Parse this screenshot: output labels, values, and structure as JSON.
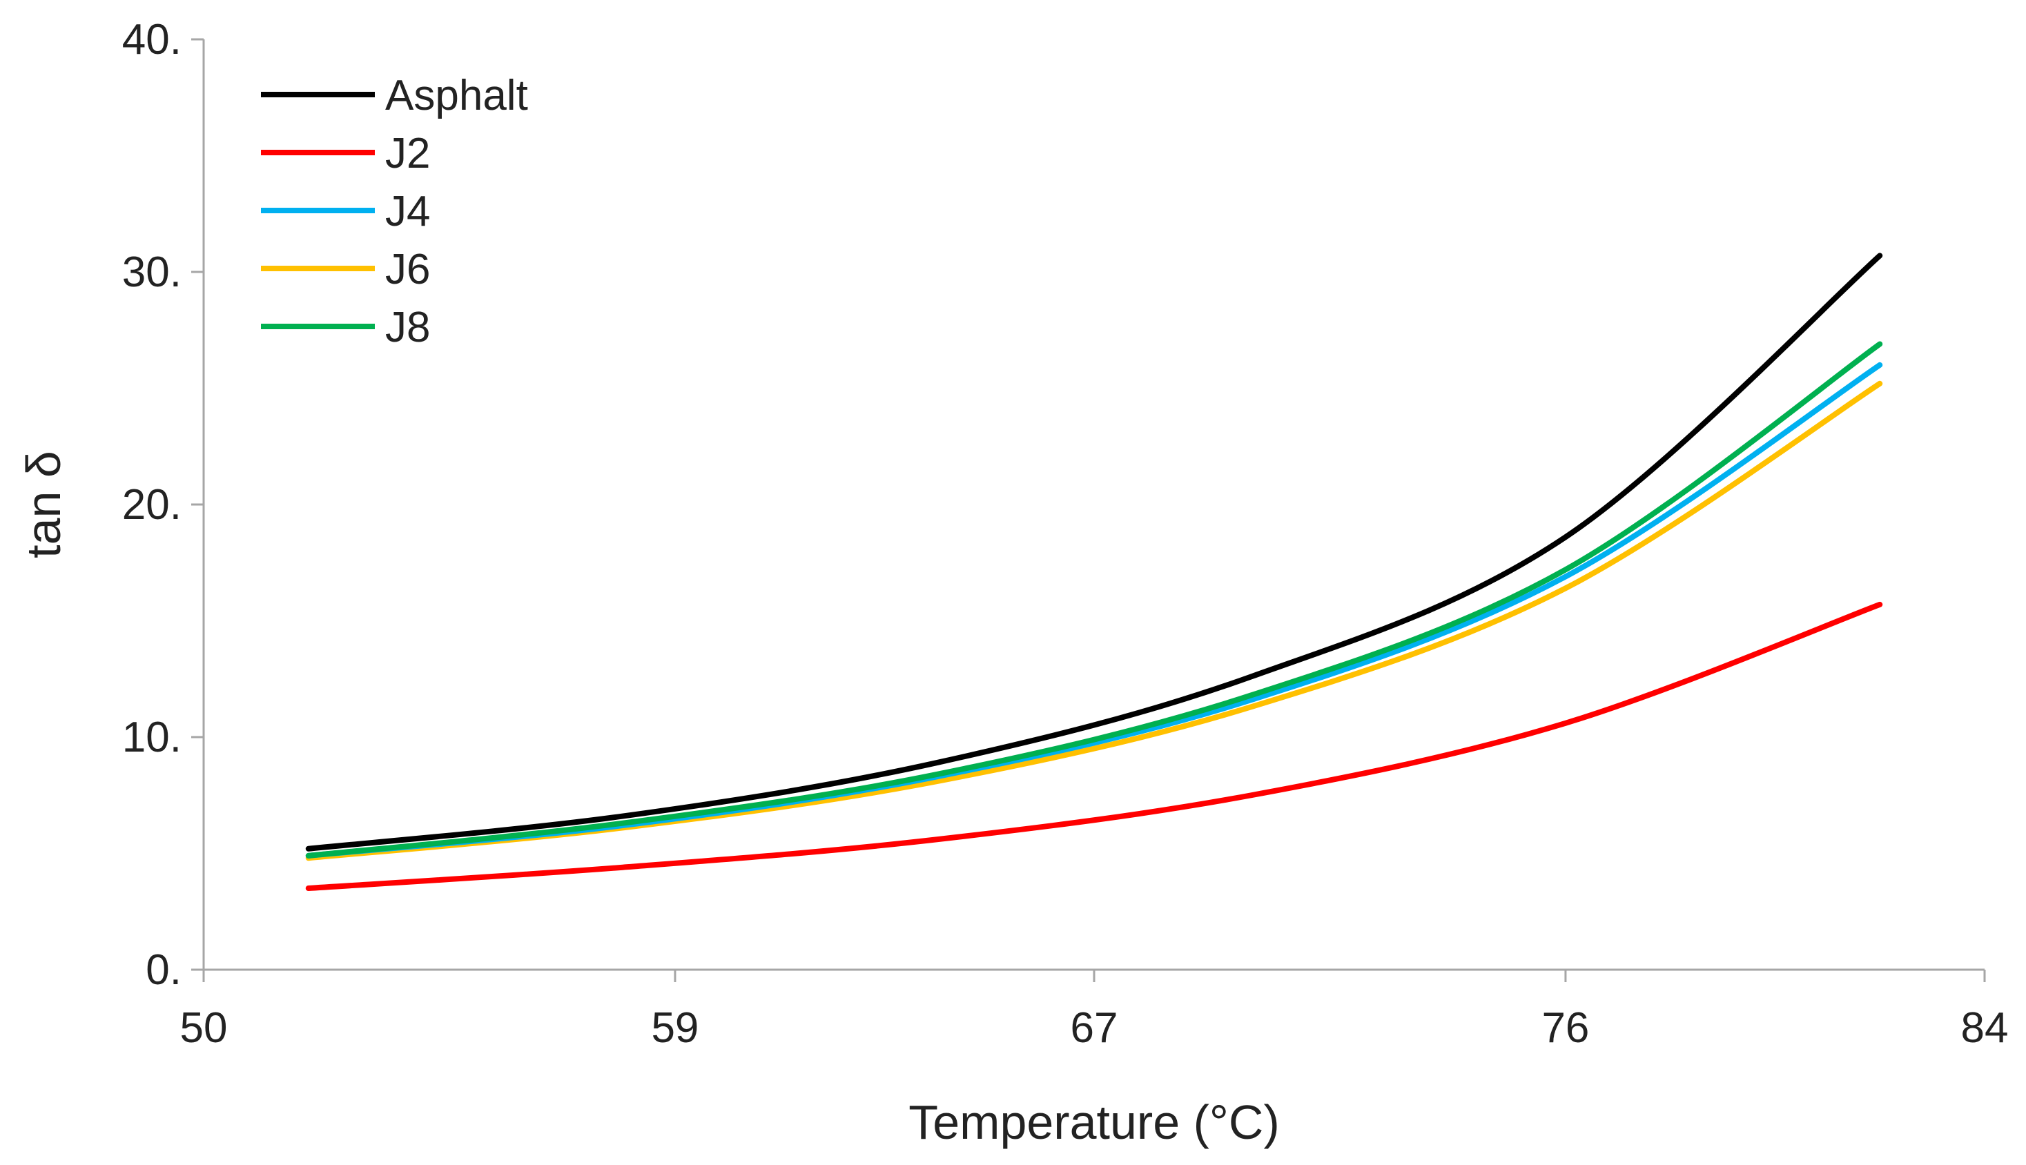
{
  "chart_data": {
    "type": "line",
    "title": "",
    "xlabel": "Temperature (°C)",
    "ylabel": "tan δ",
    "xlim": [
      50,
      84
    ],
    "ylim": [
      0,
      40
    ],
    "x_ticks": [
      50,
      59,
      67,
      76,
      84
    ],
    "x_tick_labels": [
      "50",
      "59",
      "67",
      "76",
      "84"
    ],
    "y_ticks": [
      0,
      10,
      20,
      30,
      40
    ],
    "y_tick_labels": [
      "0.",
      "10.",
      "20.",
      "30.",
      "40."
    ],
    "grid": false,
    "legend_position": "top-left",
    "x": [
      52,
      58,
      64,
      70,
      76,
      82
    ],
    "series": [
      {
        "name": "Asphalt",
        "color": "#000000",
        "values": [
          5.2,
          6.6,
          8.9,
          12.6,
          18.6,
          30.7
        ]
      },
      {
        "name": "J2",
        "color": "#ff0000",
        "values": [
          3.5,
          4.4,
          5.6,
          7.5,
          10.6,
          15.7
        ]
      },
      {
        "name": "J4",
        "color": "#00b0f0",
        "values": [
          4.9,
          6.2,
          8.3,
          11.6,
          16.9,
          26.0
        ]
      },
      {
        "name": "J6",
        "color": "#ffc000",
        "values": [
          4.8,
          6.1,
          8.1,
          11.3,
          16.4,
          25.2
        ]
      },
      {
        "name": "J8",
        "color": "#00b050",
        "values": [
          4.9,
          6.3,
          8.4,
          11.8,
          17.2,
          26.9
        ]
      }
    ]
  }
}
